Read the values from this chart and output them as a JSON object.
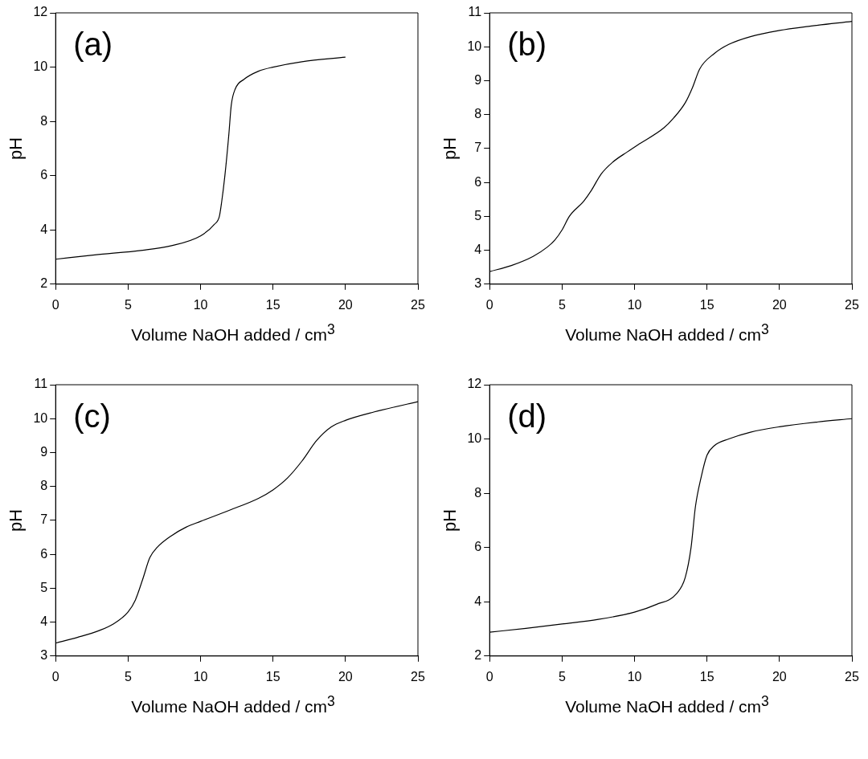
{
  "chart_data": [
    {
      "type": "line",
      "annotations": [
        "(a)"
      ],
      "xlabel": "Volume NaOH added / cm$^{3}$",
      "ylabel": "pH",
      "xlim": [
        0,
        25
      ],
      "xticks": [
        0,
        5,
        10,
        15,
        20,
        25
      ],
      "ylim": [
        2,
        12
      ],
      "yticks": [
        2,
        4,
        6,
        8,
        10,
        12
      ],
      "x": [
        0,
        2.7,
        6,
        8,
        10,
        10.95,
        11.3,
        11.45,
        11.68,
        11.95,
        12.12,
        12.4,
        13,
        14,
        15,
        17,
        20
      ],
      "series": [
        {
          "color": "#000000",
          "values": [
            2.92,
            3.08,
            3.25,
            3.42,
            3.78,
            4.2,
            4.5,
            5.0,
            6.0,
            7.5,
            8.6,
            9.2,
            9.55,
            9.85,
            10.0,
            10.2,
            10.37
          ]
        }
      ]
    },
    {
      "type": "line",
      "annotations": [
        "(b)"
      ],
      "xlabel": "Volume NaOH added / cm$^{3}$",
      "ylabel": "pH",
      "xlim": [
        0,
        25
      ],
      "xticks": [
        0,
        5,
        10,
        15,
        20,
        25
      ],
      "ylim": [
        3,
        11
      ],
      "yticks": [
        3,
        4,
        5,
        6,
        7,
        8,
        9,
        10,
        11
      ],
      "x": [
        0,
        1.5,
        3,
        4,
        4.5,
        5,
        5.5,
        6.5,
        7,
        7.7,
        8.5,
        9.5,
        10.2,
        12,
        12.7,
        13.5,
        14,
        14.5,
        15.5,
        16.5,
        18,
        20,
        22,
        25
      ],
      "series": [
        {
          "color": "#000000",
          "values": [
            3.37,
            3.55,
            3.82,
            4.1,
            4.3,
            4.6,
            5.0,
            5.45,
            5.75,
            6.25,
            6.6,
            6.9,
            7.1,
            7.6,
            7.9,
            8.35,
            8.8,
            9.35,
            9.8,
            10.07,
            10.3,
            10.48,
            10.6,
            10.75
          ]
        }
      ]
    },
    {
      "type": "line",
      "annotations": [
        "(c)"
      ],
      "xlabel": "Volume NaOH added / cm$^{3}$",
      "ylabel": "pH",
      "xlim": [
        0,
        25
      ],
      "xticks": [
        0,
        5,
        10,
        15,
        20,
        25
      ],
      "ylim": [
        3,
        11
      ],
      "yticks": [
        3,
        4,
        5,
        6,
        7,
        8,
        9,
        10,
        11
      ],
      "x": [
        0,
        1.5,
        3,
        4,
        5,
        5.5,
        6,
        6.5,
        7,
        8,
        9,
        10,
        12,
        14,
        15,
        16,
        17,
        18,
        19,
        20,
        22,
        25
      ],
      "series": [
        {
          "color": "#000000",
          "values": [
            3.38,
            3.55,
            3.75,
            3.95,
            4.3,
            4.65,
            5.25,
            5.9,
            6.2,
            6.55,
            6.8,
            6.97,
            7.3,
            7.65,
            7.9,
            8.25,
            8.75,
            9.35,
            9.75,
            9.95,
            10.2,
            10.5
          ]
        }
      ]
    },
    {
      "type": "line",
      "annotations": [
        "(d)"
      ],
      "xlabel": "Volume NaOH added / cm$^{3}$",
      "ylabel": "pH",
      "xlim": [
        0,
        25
      ],
      "xticks": [
        0,
        5,
        10,
        15,
        20,
        25
      ],
      "ylim": [
        2,
        12
      ],
      "yticks": [
        2,
        4,
        6,
        8,
        10,
        12
      ],
      "x": [
        0,
        2.5,
        5,
        7.5,
        10,
        11.5,
        12.9,
        13.5,
        13.9,
        14.2,
        14.6,
        15,
        15.5,
        16.5,
        18,
        20,
        22.5,
        25
      ],
      "series": [
        {
          "color": "#000000",
          "values": [
            2.88,
            3.02,
            3.18,
            3.35,
            3.62,
            3.9,
            4.3,
            4.9,
            6.0,
            7.5,
            8.6,
            9.4,
            9.75,
            10.0,
            10.25,
            10.45,
            10.62,
            10.75
          ]
        }
      ]
    }
  ]
}
